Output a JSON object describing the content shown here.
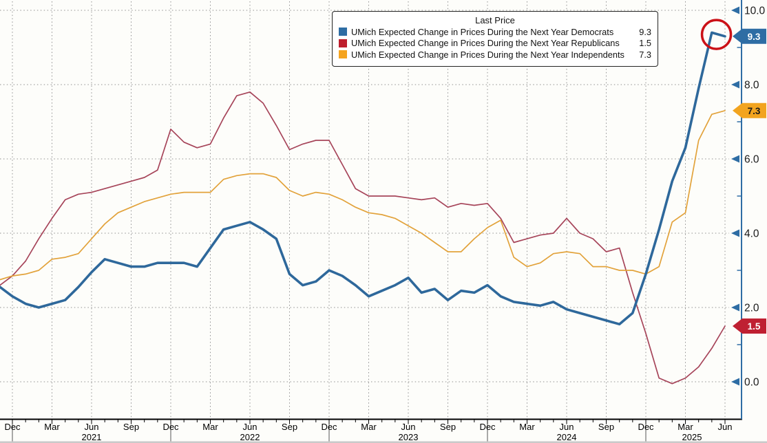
{
  "legend": {
    "title": "Last Price",
    "rows": [
      {
        "key": "democrats",
        "label": "UMich Expected Change in Prices During the Next Year Democrats",
        "value": "9.3",
        "swatch": "#2e6da4"
      },
      {
        "key": "republicans",
        "label": "UMich Expected Change in Prices During the Next Year Republicans",
        "value": "1.5",
        "swatch": "#be1e2d"
      },
      {
        "key": "independents",
        "label": "UMich Expected Change in Prices During the Next Year Independents",
        "value": "7.3",
        "swatch": "#f5a41f"
      }
    ]
  },
  "chart_data": {
    "type": "line",
    "title": "Last Price",
    "x_start_month": "Nov 2020",
    "x_end_month": "Jun 2025",
    "x_frequency": "monthly",
    "ylim": [
      0,
      10
    ],
    "grid": "dotted",
    "y_axis": {
      "side": "right",
      "color": "#2e6da4",
      "label_color": "#1a1a1a",
      "tick_values": [
        10,
        8,
        6,
        4,
        2,
        0
      ],
      "tick_labels": [
        "10.0",
        "8.0",
        "6.0",
        "4.0",
        "2.0",
        "0.0"
      ],
      "minor_tick_values": [
        9,
        7,
        5,
        3,
        1
      ]
    },
    "x_axis": {
      "quarter_month_labels": [
        "Dec",
        "Mar",
        "Jun",
        "Sep",
        "Dec",
        "Mar",
        "Jun",
        "Sep",
        "Dec",
        "Mar",
        "Jun",
        "Sep",
        "Dec",
        "Mar",
        "Jun",
        "Sep",
        "Dec",
        "Mar",
        "Jun"
      ],
      "year_labels": [
        "2021",
        "2022",
        "2023",
        "2024",
        "2025"
      ]
    },
    "series": [
      {
        "key": "democrats",
        "name": "UMich Expected Change in Prices During the Next Year Democrats",
        "last_price": 9.3,
        "swatch_color": "#2e6da4",
        "line_color": "#2e689b",
        "line_width": 3.6,
        "values": [
          2.55,
          2.3,
          2.1,
          2.0,
          2.1,
          2.2,
          2.55,
          2.95,
          3.3,
          3.2,
          3.1,
          3.1,
          3.2,
          3.2,
          3.2,
          3.1,
          3.6,
          4.1,
          4.2,
          4.3,
          4.1,
          3.85,
          2.9,
          2.6,
          2.7,
          3.0,
          2.85,
          2.6,
          2.3,
          2.45,
          2.6,
          2.8,
          2.4,
          2.5,
          2.2,
          2.45,
          2.4,
          2.6,
          2.3,
          2.15,
          2.1,
          2.05,
          2.15,
          1.95,
          1.85,
          1.75,
          1.65,
          1.55,
          1.85,
          2.9,
          4.1,
          5.4,
          6.3,
          7.9,
          9.4,
          9.3
        ]
      },
      {
        "key": "republicans",
        "name": "UMich Expected Change in Prices During the Next Year Republicans",
        "last_price": 1.5,
        "swatch_color": "#be1e2d",
        "line_color": "#a64459",
        "line_width": 1.7,
        "values": [
          2.6,
          2.85,
          3.25,
          3.85,
          4.4,
          4.9,
          5.05,
          5.1,
          5.2,
          5.3,
          5.4,
          5.5,
          5.7,
          6.8,
          6.45,
          6.3,
          6.4,
          7.1,
          7.7,
          7.8,
          7.5,
          6.9,
          6.25,
          6.4,
          6.5,
          6.5,
          5.85,
          5.2,
          5.0,
          5.0,
          5.0,
          4.95,
          4.9,
          4.95,
          4.7,
          4.8,
          4.75,
          4.8,
          4.4,
          3.75,
          3.85,
          3.95,
          4.0,
          4.4,
          4.0,
          3.85,
          3.5,
          3.6,
          2.4,
          1.3,
          0.1,
          -0.05,
          0.1,
          0.4,
          0.9,
          1.5
        ]
      },
      {
        "key": "independents",
        "name": "UMich Expected Change in Prices During the Next Year Independents",
        "last_price": 7.3,
        "swatch_color": "#f5a41f",
        "line_color": "#e2a23a",
        "line_width": 1.7,
        "values": [
          2.75,
          2.85,
          2.9,
          3.0,
          3.3,
          3.35,
          3.45,
          3.85,
          4.25,
          4.55,
          4.7,
          4.85,
          4.95,
          5.05,
          5.1,
          5.1,
          5.1,
          5.45,
          5.55,
          5.6,
          5.6,
          5.5,
          5.15,
          5.0,
          5.1,
          5.05,
          4.9,
          4.7,
          4.55,
          4.5,
          4.4,
          4.2,
          4.0,
          3.75,
          3.5,
          3.5,
          3.85,
          4.15,
          4.35,
          3.35,
          3.1,
          3.2,
          3.45,
          3.5,
          3.45,
          3.1,
          3.1,
          3.0,
          3.0,
          2.9,
          3.1,
          4.3,
          4.55,
          6.5,
          7.2,
          7.3
        ]
      }
    ],
    "badges": [
      {
        "text": "9.3",
        "value": 9.3,
        "bg": "#2e6da4",
        "fg": "#ffffff"
      },
      {
        "text": "7.3",
        "value": 7.3,
        "bg": "#f2a41f",
        "fg": "#1a1a1a"
      },
      {
        "text": "1.5",
        "value": 1.5,
        "bg": "#bf2032",
        "fg": "#ffffff"
      }
    ],
    "annotation_circle": {
      "month_index": 54.35,
      "value": 9.35,
      "radius": 21,
      "color": "#cb1117",
      "stroke_width": 3.5
    }
  }
}
